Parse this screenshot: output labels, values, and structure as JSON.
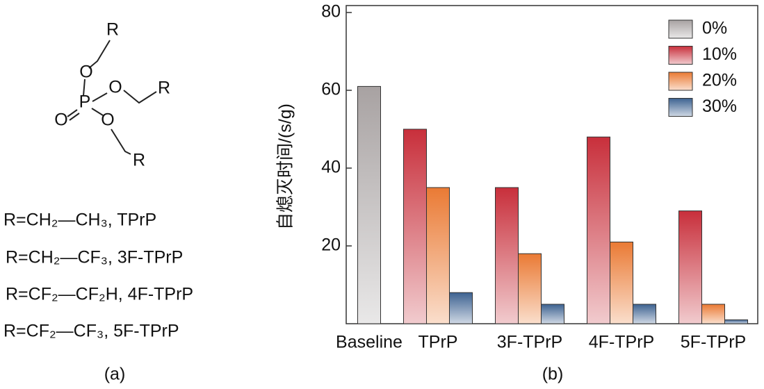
{
  "panel_a": {
    "structure_labels": [
      "R",
      "O",
      "O",
      "R",
      "P",
      "O",
      "O",
      "R"
    ],
    "definitions": [
      "R=CH₂—CH₃, TPrP",
      "R=CH₂—CF₃, 3F-TPrP",
      "R=CF₂—CF₂H, 4F-TPrP",
      "R=CF₂—CF₃, 5F-TPrP"
    ],
    "caption": "(a)"
  },
  "chart_data": {
    "type": "bar",
    "caption": "(b)",
    "y_label": "自熄灭时间/(s/g)",
    "categories": [
      "Baseline",
      "TPrP",
      "3F-TPrP",
      "4F-TPrP",
      "5F-TPrP"
    ],
    "series": [
      {
        "name": "0%",
        "color": "#a8a2a2",
        "values": [
          61,
          null,
          null,
          null,
          null
        ]
      },
      {
        "name": "10%",
        "color": "#c82f3b",
        "values": [
          null,
          50,
          35,
          48,
          29
        ]
      },
      {
        "name": "20%",
        "color": "#ea7a34",
        "values": [
          null,
          35,
          18,
          21,
          5
        ]
      },
      {
        "name": "30%",
        "color": "#3d6291",
        "values": [
          null,
          8,
          5,
          5,
          1
        ]
      }
    ],
    "ylim": [
      0,
      80
    ],
    "yticks": [
      20,
      40,
      60,
      80
    ],
    "legend": "top-right"
  }
}
